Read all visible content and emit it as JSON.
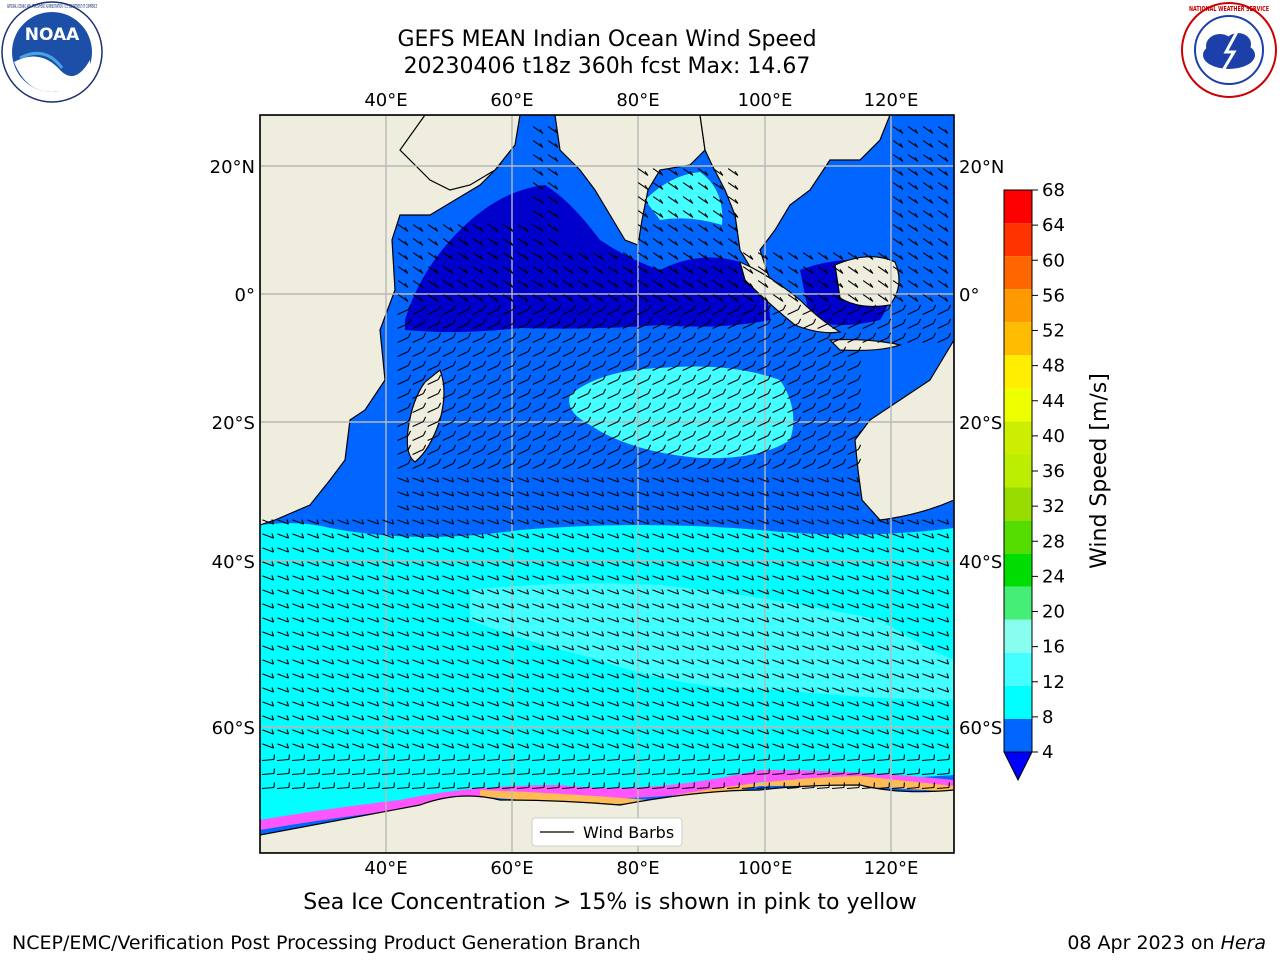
{
  "header": {
    "title_line1": "GEFS MEAN Indian Ocean Wind Speed",
    "title_line2": "20230406 t18z 360h fcst   Max: 14.67",
    "left_logo": "NOAA",
    "left_logo_ring_text": "NATIONAL OCEANIC AND ATMOSPHERIC ADMINISTRATION · U.S. DEPARTMENT OF COMMERCE",
    "right_logo_ring_text": "NATIONAL WEATHER SERVICE"
  },
  "map": {
    "lon_labels": [
      "40°E",
      "60°E",
      "80°E",
      "100°E",
      "120°E"
    ],
    "lat_labels": [
      "20°N",
      "0°",
      "20°S",
      "40°S",
      "60°S"
    ],
    "legend_label": "Wind Barbs",
    "colors": {
      "land": "#efedde",
      "wind_4_8": "#0066ff",
      "wind_low": "#0000cc",
      "wind_8_12": "#00ffff",
      "wind_12_16": "#44ffff",
      "sea_ice_pink": "#ff55ff",
      "sea_ice_yellow": "#ffbb55"
    }
  },
  "colorbar": {
    "label": "Wind Speed [m/s]",
    "ticks": [
      "68",
      "64",
      "60",
      "56",
      "52",
      "48",
      "44",
      "40",
      "36",
      "32",
      "28",
      "24",
      "20",
      "16",
      "12",
      "8",
      "4"
    ],
    "colors": [
      "#ff0000",
      "#ff3300",
      "#ff6600",
      "#ff9900",
      "#ffbb00",
      "#ffee00",
      "#eeff00",
      "#ccee00",
      "#bbee00",
      "#99dd00",
      "#55dd00",
      "#00dd00",
      "#44ee77",
      "#88ffee",
      "#44ffff",
      "#00ffff",
      "#0066ff"
    ],
    "under_color": "#0000ff"
  },
  "note": "Sea Ice Concentration > 15% is shown in pink to yellow",
  "footer": {
    "left": "NCEP/EMC/Verification Post Processing Product Generation Branch",
    "right_prefix": "08 Apr 2023 on ",
    "right_machine": "Hera"
  }
}
